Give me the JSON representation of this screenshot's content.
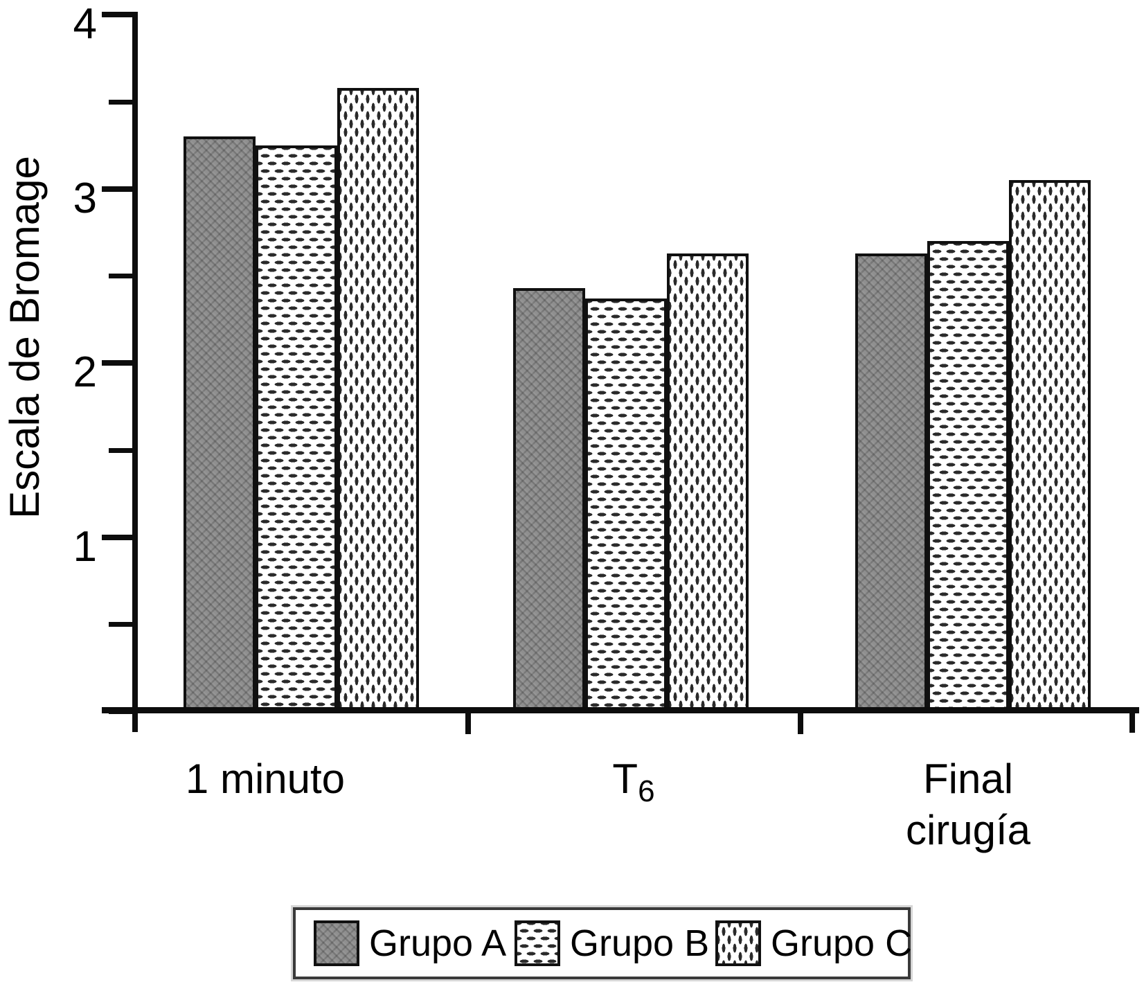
{
  "chart_data": {
    "type": "bar",
    "title": "",
    "xlabel": "",
    "ylabel": "Escala de Bromage",
    "ylim": [
      0,
      4
    ],
    "yticks_major": [
      4,
      3,
      2,
      1
    ],
    "yticks_minor": [
      3.5,
      2.5,
      1.5,
      0.5,
      0
    ],
    "grid": false,
    "legend_position": "bottom-center",
    "categories": [
      "1 minuto",
      "T6",
      "Final cirugía"
    ],
    "series": [
      {
        "name": "Grupo A",
        "pattern": "gray-weave",
        "values": [
          3.3,
          2.43,
          2.63
        ]
      },
      {
        "name": "Grupo B",
        "pattern": "dash-rows",
        "values": [
          3.25,
          2.37,
          2.7
        ]
      },
      {
        "name": "Grupo C",
        "pattern": "dash-columns",
        "values": [
          3.58,
          2.63,
          3.05
        ]
      }
    ],
    "colors": {
      "bar_a_fill": "#8f8f8f",
      "pattern_ink": "#2a2a2a",
      "axis": "#0d0d0d",
      "background": "#ffffff"
    }
  },
  "display": {
    "t_base": "T",
    "t_sub": "6",
    "final_line1": "Final",
    "final_line2": "cirugía"
  }
}
